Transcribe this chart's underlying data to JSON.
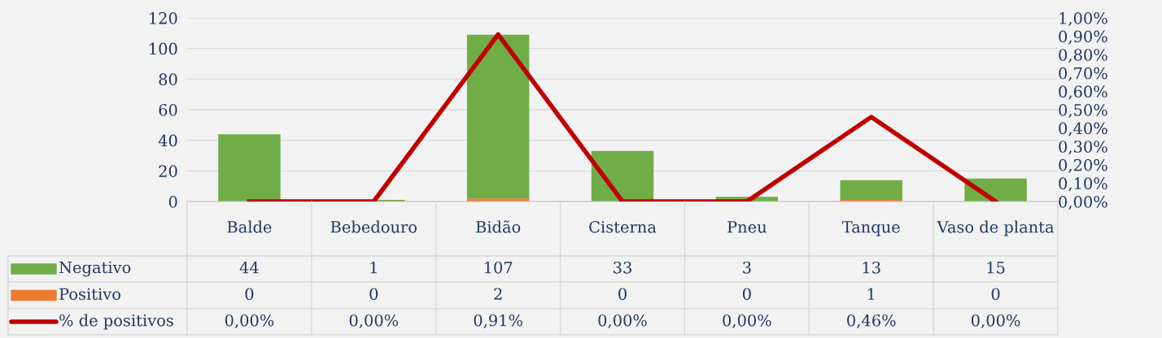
{
  "chart_data": {
    "type": "bar",
    "stacked": true,
    "categories": [
      "Balde",
      "Bebedouro",
      "Bidão",
      "Cisterna",
      "Pneu",
      "Tanque",
      "Vaso de planta"
    ],
    "series": [
      {
        "name": "Positivo",
        "color": "#ed7d31",
        "values": [
          0,
          0,
          2,
          0,
          0,
          1,
          0
        ],
        "value_labels": [
          "0",
          "0",
          "2",
          "0",
          "0",
          "1",
          "0"
        ]
      },
      {
        "name": "Negativo",
        "color": "#70ad47",
        "values": [
          44,
          1,
          107,
          33,
          3,
          13,
          15
        ],
        "value_labels": [
          "44",
          "1",
          "107",
          "33",
          "3",
          "13",
          "15"
        ]
      },
      {
        "name": "% de positivos",
        "type": "line",
        "axis": "y2",
        "color": "#c00000",
        "values": [
          0,
          0,
          0.91,
          0,
          0,
          0.46,
          0
        ],
        "value_labels": [
          "0,00%",
          "0,00%",
          "0,91%",
          "0,00%",
          "0,00%",
          "0,46%",
          "0,00%"
        ]
      }
    ],
    "ylim": [
      0,
      120
    ],
    "yticks": [
      0,
      20,
      40,
      60,
      80,
      100,
      120
    ],
    "y2lim": [
      0,
      1
    ],
    "y2ticks": [
      {
        "value": 0,
        "label": "0,00%"
      },
      {
        "value": 0.1,
        "label": "0,10%"
      },
      {
        "value": 0.2,
        "label": "0,20%"
      },
      {
        "value": 0.3,
        "label": "0,30%"
      },
      {
        "value": 0.4,
        "label": "0,40%"
      },
      {
        "value": 0.5,
        "label": "0,50%"
      },
      {
        "value": 0.6,
        "label": "0,60%"
      },
      {
        "value": 0.7,
        "label": "0,70%"
      },
      {
        "value": 0.8,
        "label": "0,80%"
      },
      {
        "value": 0.9,
        "label": "0,90%"
      },
      {
        "value": 1,
        "label": "1,00%"
      }
    ],
    "grid": "y",
    "legend": "bottom left",
    "marker": "none",
    "line_style": "solid"
  }
}
